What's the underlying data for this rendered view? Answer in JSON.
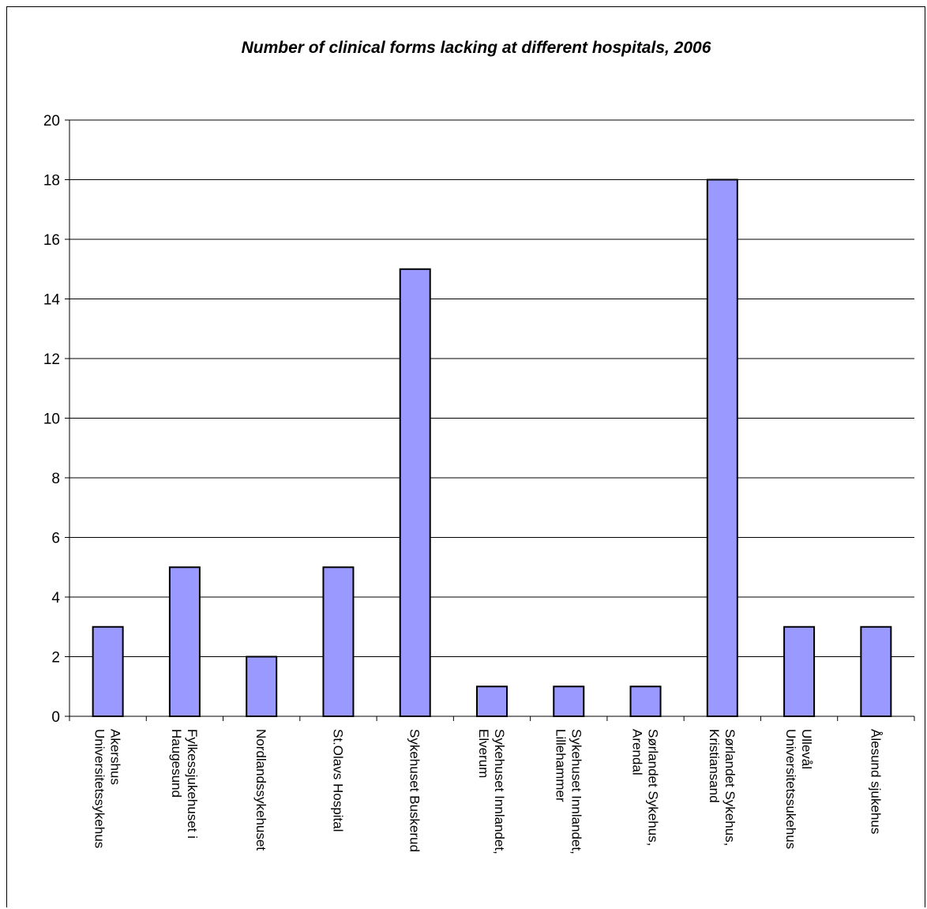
{
  "chart_data": {
    "type": "bar",
    "title": "Number of clinical forms lacking at different hospitals, 2006",
    "categories": [
      [
        "Akershus",
        "Universitetssykehus"
      ],
      [
        "Fylkessjukehuset i",
        "Haugesund"
      ],
      [
        "Nordlandssykehuset"
      ],
      [
        "St.Olavs Hospital"
      ],
      [
        "Sykehuset Buskerud"
      ],
      [
        "Sykehuset Innlandet,",
        "Elverum"
      ],
      [
        "Sykehuset Innlandet,",
        "Lillehammer"
      ],
      [
        "Sørlandet Sykehus,",
        "Arendal"
      ],
      [
        "Sørlandet Sykehus,",
        "Kristiansand"
      ],
      [
        "Ullevål",
        "Universitetssukehus"
      ],
      [
        "Ålesund sjukehus"
      ]
    ],
    "values": [
      3,
      5,
      2,
      5,
      15,
      1,
      1,
      1,
      18,
      3,
      3
    ],
    "ylim": [
      0,
      20
    ],
    "yticks": [
      0,
      2,
      4,
      6,
      8,
      10,
      12,
      14,
      16,
      18,
      20
    ],
    "grid": true,
    "colors": {
      "bar": "#9999ff",
      "bar_border": "#000000",
      "grid": "#000000"
    }
  }
}
